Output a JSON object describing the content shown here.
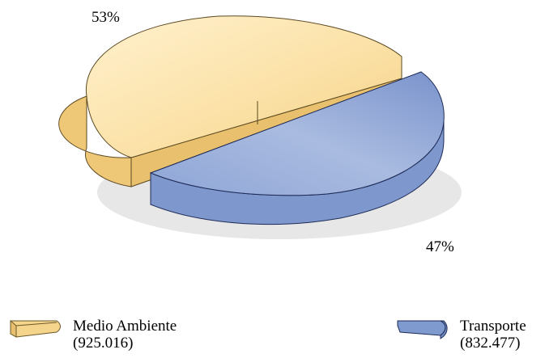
{
  "chart_data": {
    "type": "pie",
    "style": "3d-exploded",
    "slices": [
      {
        "label": "Medio Ambiente",
        "value_text": "(925.016)",
        "value": 925016,
        "percent": 53,
        "percent_label": "53%",
        "color": "#F5D48C"
      },
      {
        "label": "Transporte",
        "value_text": "(832.477)",
        "value": 832477,
        "percent": 47,
        "percent_label": "47%",
        "color": "#7F9ACF"
      }
    ],
    "legend_position": "bottom"
  }
}
